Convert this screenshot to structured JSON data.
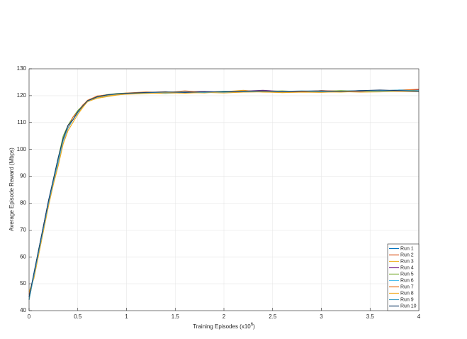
{
  "chart_data": {
    "type": "line",
    "xlabel": {
      "text": "Training Episodes (x10",
      "sup": "6",
      "end": ")"
    },
    "ylabel": "Average Episode Reward (Mbps)",
    "x": [
      0,
      0.05,
      0.1,
      0.15,
      0.2,
      0.25,
      0.3,
      0.35,
      0.4,
      0.45,
      0.5,
      0.55,
      0.6,
      0.7,
      0.8,
      0.9,
      1.0,
      1.2,
      1.4,
      1.6,
      1.8,
      2.0,
      2.2,
      2.4,
      2.6,
      2.8,
      3.0,
      3.2,
      3.4,
      3.6,
      3.8,
      4.0
    ],
    "xlim": [
      0,
      4
    ],
    "xticks": [
      0,
      0.5,
      1,
      1.5,
      2,
      2.5,
      3,
      3.5,
      4
    ],
    "ylim": [
      40,
      130
    ],
    "yticks": [
      40,
      50,
      60,
      70,
      80,
      90,
      100,
      110,
      120,
      130
    ],
    "grid": true,
    "legend": "lower right",
    "series": [
      {
        "name": "Run 1",
        "color": "#0072BD",
        "values": [
          44,
          54,
          63,
          72,
          81,
          89,
          97,
          104,
          108,
          111,
          114,
          116,
          118,
          119.6,
          120.2,
          120.6,
          120.9,
          121.1,
          121.3,
          121.2,
          121.5,
          121.4,
          121.6,
          121.8,
          121.5,
          121.7,
          121.8,
          121.6,
          121.9,
          121.8,
          122.1,
          122.2
        ]
      },
      {
        "name": "Run 2",
        "color": "#D95319",
        "values": [
          46,
          53,
          62,
          71,
          80,
          88,
          96,
          103,
          108,
          112,
          114,
          116.5,
          118,
          119.3,
          120.1,
          120.4,
          120.7,
          121.2,
          121.5,
          121.0,
          121.3,
          121.6,
          121.4,
          121.9,
          121.3,
          121.5,
          121.7,
          121.8,
          121.6,
          121.9,
          121.7,
          122.3
        ]
      },
      {
        "name": "Run 3",
        "color": "#EDB120",
        "values": [
          47,
          52,
          61,
          70,
          79,
          87,
          94,
          102,
          107,
          110,
          113,
          115.5,
          117.8,
          119.0,
          119.6,
          120.2,
          120.6,
          121.0,
          120.8,
          121.2,
          121.0,
          121.5,
          122.0,
          121.3,
          121.2,
          121.5,
          121.4,
          121.3,
          121.6,
          121.5,
          121.8,
          121.6
        ]
      },
      {
        "name": "Run 4",
        "color": "#7E2F8E",
        "values": [
          45,
          53,
          62,
          72,
          81,
          88,
          96,
          104,
          109,
          111,
          114,
          116,
          118.2,
          119.8,
          120.3,
          120.7,
          120.9,
          121.2,
          121.1,
          121.5,
          121.6,
          121.3,
          121.7,
          122.0,
          121.6,
          121.4,
          121.9,
          121.7,
          121.5,
          122.0,
          121.8,
          122.1
        ]
      },
      {
        "name": "Run 5",
        "color": "#77AC30",
        "values": [
          44,
          53,
          63,
          71,
          80,
          89,
          97,
          105,
          109,
          112,
          114.5,
          116.3,
          118.1,
          119.7,
          120.4,
          120.8,
          121.0,
          120.9,
          121.4,
          121.3,
          121.2,
          121.7,
          121.5,
          121.6,
          121.8,
          121.5,
          121.6,
          121.9,
          121.7,
          121.6,
          122.0,
          121.9
        ]
      },
      {
        "name": "Run 6",
        "color": "#4DBEEE",
        "values": [
          45,
          54,
          62,
          71,
          80,
          88,
          95,
          103,
          108,
          111,
          113.5,
          116,
          117.9,
          119.4,
          119.8,
          120.5,
          120.8,
          121.3,
          120.9,
          121.1,
          121.4,
          121.2,
          121.3,
          121.5,
          121.4,
          121.7,
          121.5,
          121.6,
          121.8,
          121.7,
          121.6,
          121.9
        ]
      },
      {
        "name": "Run 7",
        "color": "#E8711A",
        "values": [
          46,
          53,
          62,
          72,
          80,
          88,
          96,
          104,
          108,
          112,
          114,
          116.4,
          118.3,
          119.9,
          120.3,
          120.6,
          121.0,
          121.4,
          121.2,
          121.8,
          121.3,
          121.5,
          121.8,
          121.6,
          121.7,
          121.5,
          121.9,
          121.6,
          121.8,
          121.9,
          122.0,
          122.4
        ]
      },
      {
        "name": "Run 8",
        "color": "#F2A91F",
        "values": [
          47,
          52,
          61,
          70,
          79,
          87,
          94,
          102,
          107,
          110,
          113,
          115.8,
          117.7,
          119.2,
          119.9,
          120.3,
          120.5,
          120.8,
          121.1,
          120.9,
          121.2,
          121.0,
          121.3,
          121.4,
          121.1,
          121.3,
          121.2,
          121.5,
          121.3,
          121.4,
          121.6,
          121.5
        ]
      },
      {
        "name": "Run 9",
        "color": "#3C9EC2",
        "values": [
          44,
          53,
          62,
          71,
          80,
          88,
          96,
          104,
          108,
          111,
          114,
          116.2,
          118,
          119.5,
          120.2,
          120.6,
          120.9,
          121.1,
          121.3,
          121.4,
          121.2,
          121.6,
          121.5,
          121.7,
          121.6,
          121.8,
          121.5,
          121.7,
          121.9,
          121.8,
          122.1,
          121.7
        ]
      },
      {
        "name": "Run 10",
        "color": "#173F6B",
        "values": [
          45,
          54,
          63,
          72,
          81,
          89,
          97,
          104,
          109,
          111,
          114,
          116.1,
          118.1,
          119.6,
          120.3,
          120.7,
          120.9,
          121.2,
          121.4,
          121.2,
          121.5,
          121.4,
          121.7,
          121.8,
          121.5,
          121.7,
          121.8,
          121.6,
          121.9,
          122.1,
          121.9,
          121.6
        ]
      }
    ]
  }
}
